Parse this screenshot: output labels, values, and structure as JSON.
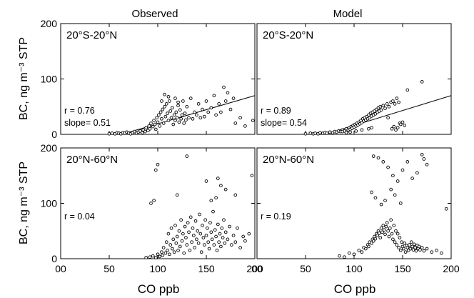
{
  "figure": {
    "column_titles": [
      "Observed",
      "Model"
    ],
    "y_label": "BC, ng m⁻³ STP",
    "x_label": "CO ppb"
  },
  "chart_data": [
    {
      "type": "scatter",
      "column": "Observed",
      "region": "20°S-20°N",
      "xlim": [
        0,
        200
      ],
      "ylim": [
        0,
        200
      ],
      "x_ticks": [
        "00",
        "50",
        "100",
        "150",
        "200"
      ],
      "y_ticks": [
        "0",
        "100",
        "200"
      ],
      "r": "r =  0.76",
      "slope": "slope=  0.51",
      "fit": {
        "slope": 0.51,
        "intercept": -32
      },
      "points": [
        [
          50,
          1
        ],
        [
          53,
          2
        ],
        [
          56,
          1
        ],
        [
          58,
          3
        ],
        [
          60,
          2
        ],
        [
          62,
          1
        ],
        [
          64,
          3
        ],
        [
          66,
          2
        ],
        [
          68,
          4
        ],
        [
          70,
          2
        ],
        [
          72,
          1
        ],
        [
          74,
          3
        ],
        [
          76,
          5
        ],
        [
          78,
          2
        ],
        [
          80,
          4
        ],
        [
          82,
          6
        ],
        [
          84,
          3
        ],
        [
          85,
          8
        ],
        [
          87,
          5
        ],
        [
          88,
          12
        ],
        [
          90,
          7
        ],
        [
          91,
          15
        ],
        [
          92,
          10
        ],
        [
          93,
          20
        ],
        [
          95,
          14
        ],
        [
          96,
          25
        ],
        [
          97,
          18
        ],
        [
          98,
          9
        ],
        [
          99,
          30
        ],
        [
          100,
          22
        ],
        [
          101,
          35
        ],
        [
          102,
          15
        ],
        [
          103,
          40
        ],
        [
          104,
          28
        ],
        [
          105,
          45
        ],
        [
          106,
          20
        ],
        [
          107,
          50
        ],
        [
          108,
          32
        ],
        [
          109,
          55
        ],
        [
          110,
          38
        ],
        [
          111,
          25
        ],
        [
          112,
          60
        ],
        [
          113,
          42
        ],
        [
          114,
          30
        ],
        [
          115,
          48
        ],
        [
          116,
          18
        ],
        [
          117,
          35
        ],
        [
          118,
          25
        ],
        [
          119,
          40
        ],
        [
          120,
          30
        ],
        [
          121,
          52
        ],
        [
          122,
          22
        ],
        [
          123,
          44
        ],
        [
          124,
          28
        ],
        [
          125,
          35
        ],
        [
          126,
          60
        ],
        [
          127,
          20
        ],
        [
          128,
          38
        ],
        [
          129,
          26
        ],
        [
          130,
          50
        ],
        [
          132,
          30
        ],
        [
          134,
          65
        ],
        [
          136,
          28
        ],
        [
          138,
          40
        ],
        [
          140,
          35
        ],
        [
          142,
          55
        ],
        [
          144,
          30
        ],
        [
          146,
          45
        ],
        [
          148,
          32
        ],
        [
          150,
          60
        ],
        [
          152,
          40
        ],
        [
          155,
          48
        ],
        [
          158,
          70
        ],
        [
          160,
          35
        ],
        [
          163,
          55
        ],
        [
          165,
          40
        ],
        [
          168,
          85
        ],
        [
          170,
          60
        ],
        [
          172,
          75
        ],
        [
          175,
          45
        ],
        [
          178,
          65
        ],
        [
          180,
          20
        ],
        [
          185,
          30
        ],
        [
          190,
          15
        ],
        [
          198,
          25
        ],
        [
          107,
          72
        ],
        [
          111,
          68
        ],
        [
          118,
          65
        ],
        [
          104,
          60
        ],
        [
          121,
          58
        ]
      ]
    },
    {
      "type": "scatter",
      "column": "Model",
      "region": "20°S-20°N",
      "xlim": [
        0,
        200
      ],
      "ylim": [
        0,
        200
      ],
      "x_ticks": [
        "00",
        "50",
        "100",
        "150",
        "200"
      ],
      "y_ticks": [
        "0",
        "100",
        "200"
      ],
      "r": "r =  0.89",
      "slope": "slope=  0.54",
      "fit": {
        "slope": 0.54,
        "intercept": -38
      },
      "points": [
        [
          50,
          1
        ],
        [
          55,
          2
        ],
        [
          58,
          1
        ],
        [
          60,
          2
        ],
        [
          63,
          1
        ],
        [
          65,
          3
        ],
        [
          68,
          2
        ],
        [
          70,
          3
        ],
        [
          72,
          2
        ],
        [
          75,
          4
        ],
        [
          78,
          3
        ],
        [
          80,
          5
        ],
        [
          82,
          4
        ],
        [
          84,
          6
        ],
        [
          86,
          5
        ],
        [
          88,
          8
        ],
        [
          90,
          6
        ],
        [
          92,
          10
        ],
        [
          94,
          8
        ],
        [
          95,
          12
        ],
        [
          96,
          9
        ],
        [
          97,
          14
        ],
        [
          98,
          11
        ],
        [
          99,
          16
        ],
        [
          100,
          13
        ],
        [
          101,
          18
        ],
        [
          102,
          15
        ],
        [
          103,
          20
        ],
        [
          104,
          17
        ],
        [
          105,
          22
        ],
        [
          106,
          19
        ],
        [
          107,
          25
        ],
        [
          108,
          21
        ],
        [
          109,
          28
        ],
        [
          110,
          24
        ],
        [
          111,
          30
        ],
        [
          112,
          26
        ],
        [
          113,
          32
        ],
        [
          114,
          28
        ],
        [
          115,
          35
        ],
        [
          116,
          30
        ],
        [
          117,
          38
        ],
        [
          118,
          33
        ],
        [
          119,
          40
        ],
        [
          120,
          35
        ],
        [
          121,
          42
        ],
        [
          122,
          37
        ],
        [
          123,
          45
        ],
        [
          124,
          40
        ],
        [
          125,
          48
        ],
        [
          126,
          42
        ],
        [
          127,
          50
        ],
        [
          128,
          44
        ],
        [
          130,
          52
        ],
        [
          132,
          47
        ],
        [
          134,
          55
        ],
        [
          135,
          30
        ],
        [
          136,
          50
        ],
        [
          138,
          58
        ],
        [
          139,
          10
        ],
        [
          140,
          60
        ],
        [
          141,
          14
        ],
        [
          142,
          55
        ],
        [
          143,
          8
        ],
        [
          144,
          65
        ],
        [
          145,
          12
        ],
        [
          146,
          58
        ],
        [
          147,
          20
        ],
        [
          148,
          18
        ],
        [
          150,
          22
        ],
        [
          152,
          16
        ],
        [
          155,
          80
        ],
        [
          170,
          95
        ],
        [
          88,
          5
        ],
        [
          92,
          3
        ],
        [
          96,
          4
        ],
        [
          102,
          6
        ],
        [
          108,
          8
        ],
        [
          115,
          10
        ],
        [
          118,
          12
        ]
      ]
    },
    {
      "type": "scatter",
      "column": "Observed",
      "region": "20°N-60°N",
      "xlim": [
        0,
        200
      ],
      "ylim": [
        0,
        200
      ],
      "x_ticks": [
        "00",
        "50",
        "100",
        "150",
        "200"
      ],
      "y_ticks": [
        "0",
        "100",
        "200"
      ],
      "r": "r =  0.04",
      "points": [
        [
          88,
          2
        ],
        [
          92,
          3
        ],
        [
          95,
          5
        ],
        [
          98,
          2
        ],
        [
          100,
          8
        ],
        [
          102,
          4
        ],
        [
          104,
          12
        ],
        [
          105,
          6
        ],
        [
          106,
          20
        ],
        [
          108,
          10
        ],
        [
          109,
          30
        ],
        [
          110,
          15
        ],
        [
          111,
          45
        ],
        [
          112,
          8
        ],
        [
          113,
          25
        ],
        [
          114,
          55
        ],
        [
          115,
          18
        ],
        [
          116,
          35
        ],
        [
          117,
          12
        ],
        [
          118,
          60
        ],
        [
          119,
          28
        ],
        [
          120,
          40
        ],
        [
          121,
          15
        ],
        [
          122,
          50
        ],
        [
          123,
          22
        ],
        [
          124,
          70
        ],
        [
          125,
          32
        ],
        [
          126,
          45
        ],
        [
          127,
          10
        ],
        [
          128,
          58
        ],
        [
          129,
          38
        ],
        [
          130,
          25
        ],
        [
          131,
          65
        ],
        [
          132,
          48
        ],
        [
          133,
          15
        ],
        [
          134,
          75
        ],
        [
          135,
          30
        ],
        [
          136,
          55
        ],
        [
          137,
          42
        ],
        [
          138,
          20
        ],
        [
          139,
          68
        ],
        [
          140,
          35
        ],
        [
          141,
          50
        ],
        [
          142,
          28
        ],
        [
          143,
          80
        ],
        [
          144,
          45
        ],
        [
          145,
          12
        ],
        [
          146,
          60
        ],
        [
          147,
          38
        ],
        [
          148,
          25
        ],
        [
          149,
          70
        ],
        [
          150,
          42
        ],
        [
          151,
          55
        ],
        [
          152,
          30
        ],
        [
          153,
          18
        ],
        [
          154,
          65
        ],
        [
          155,
          48
        ],
        [
          156,
          35
        ],
        [
          157,
          85
        ],
        [
          158,
          25
        ],
        [
          159,
          52
        ],
        [
          160,
          40
        ],
        [
          161,
          15
        ],
        [
          162,
          62
        ],
        [
          163,
          30
        ],
        [
          164,
          45
        ],
        [
          165,
          22
        ],
        [
          166,
          55
        ],
        [
          167,
          38
        ],
        [
          168,
          70
        ],
        [
          169,
          28
        ],
        [
          170,
          48
        ],
        [
          172,
          35
        ],
        [
          174,
          58
        ],
        [
          176,
          25
        ],
        [
          178,
          42
        ],
        [
          180,
          30
        ],
        [
          182,
          55
        ],
        [
          185,
          20
        ],
        [
          188,
          40
        ],
        [
          190,
          32
        ],
        [
          194,
          45
        ],
        [
          197,
          150
        ],
        [
          180,
          115
        ],
        [
          170,
          125
        ],
        [
          165,
          132
        ],
        [
          162,
          145
        ],
        [
          160,
          110
        ],
        [
          155,
          105
        ],
        [
          150,
          140
        ],
        [
          130,
          185
        ],
        [
          100,
          170
        ],
        [
          98,
          160
        ],
        [
          93,
          100
        ],
        [
          96,
          105
        ],
        [
          120,
          115
        ]
      ]
    },
    {
      "type": "scatter",
      "column": "Model",
      "region": "20°N-60°N",
      "xlim": [
        0,
        200
      ],
      "ylim": [
        0,
        200
      ],
      "x_ticks": [
        "00",
        "50",
        "100",
        "150",
        "200"
      ],
      "y_ticks": [
        "0",
        "100",
        "200"
      ],
      "r": "r =  0.19",
      "points": [
        [
          85,
          5
        ],
        [
          90,
          3
        ],
        [
          95,
          10
        ],
        [
          100,
          8
        ],
        [
          105,
          15
        ],
        [
          108,
          12
        ],
        [
          110,
          20
        ],
        [
          112,
          18
        ],
        [
          114,
          25
        ],
        [
          115,
          22
        ],
        [
          116,
          30
        ],
        [
          118,
          28
        ],
        [
          119,
          35
        ],
        [
          120,
          32
        ],
        [
          121,
          40
        ],
        [
          122,
          36
        ],
        [
          123,
          45
        ],
        [
          124,
          42
        ],
        [
          125,
          50
        ],
        [
          126,
          46
        ],
        [
          127,
          38
        ],
        [
          128,
          55
        ],
        [
          129,
          48
        ],
        [
          130,
          60
        ],
        [
          131,
          52
        ],
        [
          132,
          44
        ],
        [
          133,
          58
        ],
        [
          134,
          65
        ],
        [
          135,
          50
        ],
        [
          136,
          40
        ],
        [
          137,
          55
        ],
        [
          138,
          70
        ],
        [
          139,
          45
        ],
        [
          140,
          35
        ],
        [
          141,
          60
        ],
        [
          142,
          30
        ],
        [
          143,
          50
        ],
        [
          144,
          25
        ],
        [
          145,
          45
        ],
        [
          146,
          20
        ],
        [
          147,
          38
        ],
        [
          148,
          15
        ],
        [
          149,
          30
        ],
        [
          150,
          22
        ],
        [
          151,
          18
        ],
        [
          152,
          28
        ],
        [
          153,
          12
        ],
        [
          154,
          24
        ],
        [
          155,
          20
        ],
        [
          156,
          15
        ],
        [
          157,
          25
        ],
        [
          158,
          18
        ],
        [
          159,
          30
        ],
        [
          160,
          22
        ],
        [
          161,
          16
        ],
        [
          162,
          26
        ],
        [
          163,
          20
        ],
        [
          164,
          14
        ],
        [
          165,
          24
        ],
        [
          166,
          18
        ],
        [
          167,
          22
        ],
        [
          168,
          16
        ],
        [
          170,
          20
        ],
        [
          172,
          14
        ],
        [
          175,
          18
        ],
        [
          180,
          12
        ],
        [
          185,
          15
        ],
        [
          190,
          10
        ],
        [
          195,
          90
        ],
        [
          120,
          185
        ],
        [
          125,
          182
        ],
        [
          130,
          175
        ],
        [
          135,
          165
        ],
        [
          140,
          150
        ],
        [
          145,
          140
        ],
        [
          150,
          160
        ],
        [
          155,
          175
        ],
        [
          160,
          145
        ],
        [
          165,
          155
        ],
        [
          170,
          188
        ],
        [
          172,
          180
        ],
        [
          175,
          170
        ],
        [
          118,
          120
        ],
        [
          122,
          110
        ],
        [
          128,
          98
        ],
        [
          132,
          105
        ],
        [
          138,
          125
        ],
        [
          142,
          115
        ],
        [
          148,
          100
        ]
      ]
    }
  ]
}
